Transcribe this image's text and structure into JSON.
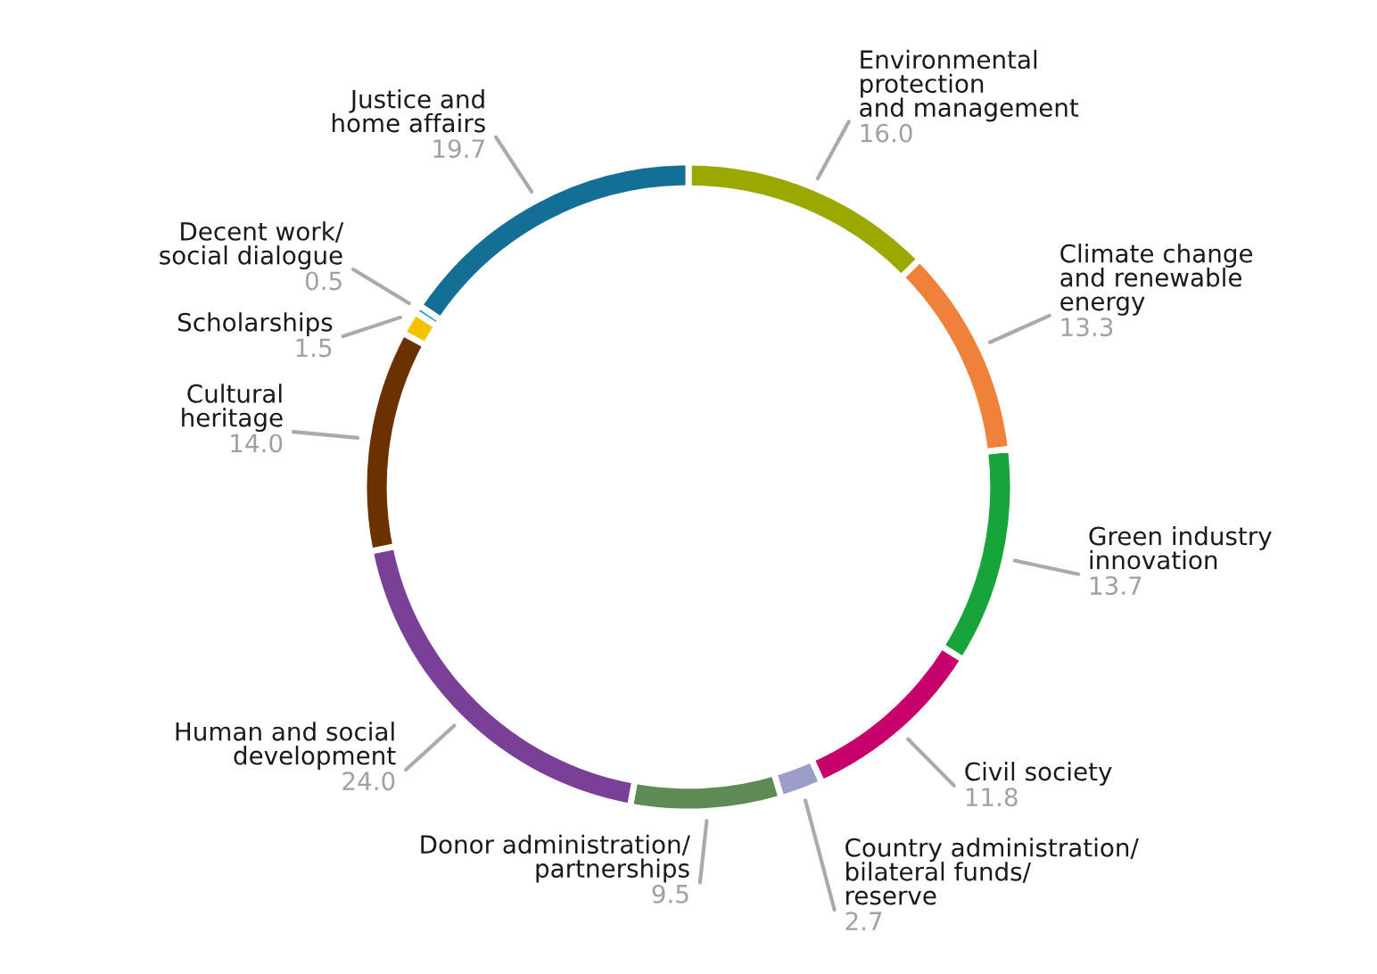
{
  "chart_data": {
    "type": "donut",
    "categories": [
      "Environmental\nprotection\nand management",
      "Climate change\nand renewable\nenergy",
      "Green industry\ninnovation",
      "Civil society",
      "Country administration/\nbilateral funds/\nreserve",
      "Donor administration/\npartnerships",
      "Human and social\ndevelopment",
      "Cultural\nheritage",
      "Scholarships",
      "Decent work/\nsocial dialogue",
      "Justice and\nhome affairs"
    ],
    "values": [
      16.0,
      13.3,
      13.7,
      11.8,
      2.7,
      9.5,
      24.0,
      14.0,
      1.5,
      0.5,
      19.7
    ],
    "value_labels": [
      "16.0",
      "13.3",
      "13.7",
      "11.8",
      "2.7",
      "9.5",
      "24.0",
      "14.0",
      "1.5",
      "0.5",
      "19.7"
    ],
    "colors": [
      "#9aa800",
      "#f0813a",
      "#17a43b",
      "#c8006b",
      "#9d9dc9",
      "#5d8b53",
      "#7a3f96",
      "#6b3200",
      "#f3c300",
      "#1b9ad6",
      "#136f96"
    ]
  }
}
